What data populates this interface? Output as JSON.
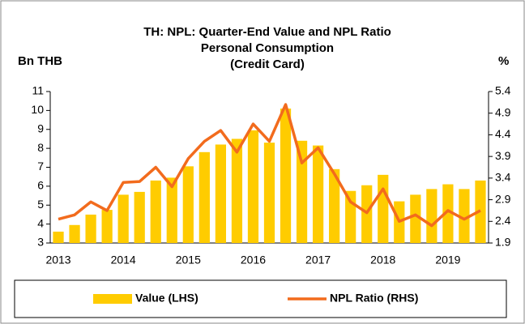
{
  "chart_data": {
    "type": "bar_line",
    "title": "TH: NPL: Quarter-End Value and NPL Ratio",
    "subtitle": [
      "Personal Consumption",
      "(Credit Card)"
    ],
    "y_label": "Bn THB",
    "y2_label": "%",
    "categories": [
      "2013",
      null,
      null,
      null,
      "2014",
      null,
      null,
      null,
      "2015",
      null,
      null,
      null,
      "2016",
      null,
      null,
      null,
      "2017",
      null,
      null,
      null,
      "2018",
      null,
      null,
      null,
      "2019",
      null,
      null
    ],
    "series": [
      {
        "name": "Value (LHS)",
        "type": "bar",
        "color": "#ffcc00",
        "values": [
          3.6,
          3.95,
          4.5,
          4.75,
          5.55,
          5.7,
          6.3,
          6.45,
          7.05,
          7.8,
          8.2,
          8.5,
          8.95,
          8.3,
          10.1,
          8.4,
          8.15,
          6.9,
          5.75,
          6.05,
          6.6,
          5.2,
          5.55,
          5.85,
          6.1,
          5.85,
          6.3
        ]
      },
      {
        "name": "NPL Ratio (RHS)",
        "type": "line",
        "axis": "y2",
        "color": "#f26b1d",
        "values": [
          2.45,
          2.55,
          2.85,
          2.65,
          3.3,
          3.32,
          3.65,
          3.2,
          3.85,
          4.25,
          4.5,
          4.0,
          4.65,
          4.25,
          5.1,
          3.75,
          4.1,
          3.5,
          2.85,
          2.6,
          3.15,
          2.4,
          2.55,
          2.3,
          2.65,
          2.45,
          2.65
        ]
      }
    ],
    "ylim": [
      3,
      11
    ],
    "yticks": [
      3,
      4,
      5,
      6,
      7,
      8,
      9,
      10,
      11
    ],
    "y2lim": [
      1.9,
      5.4
    ],
    "y2ticks": [
      1.9,
      2.4,
      2.9,
      3.4,
      3.9,
      4.4,
      4.9,
      5.4
    ],
    "legend": "bottom"
  }
}
